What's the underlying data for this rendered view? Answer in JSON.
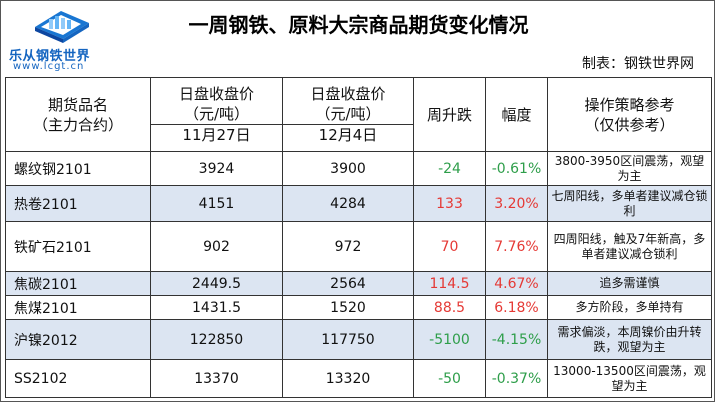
{
  "logo": {
    "name": "乐从钢铁世界",
    "url": "www.lcgt.cn"
  },
  "title": "一周钢铁、原料大宗商品期货变化情况",
  "maker": "制表：钢铁世界网",
  "headers": {
    "product_line1": "期货品名",
    "product_line2": "（主力合约）",
    "price1_line1": "日盘收盘价",
    "price1_line2": "（元/吨）",
    "price1_date": "11月27日",
    "price2_line1": "日盘收盘价",
    "price2_line2": "（元/吨）",
    "price2_date": "12月4日",
    "change": "周升跌",
    "range": "幅度",
    "strategy_line1": "操作策略参考",
    "strategy_line2": "（仅供参考）"
  },
  "rows": [
    {
      "name": "螺纹钢2101",
      "price1": "3924",
      "price2": "3900",
      "change": "-24",
      "range": "-0.61%",
      "trend": "down",
      "strategy": "3800-3950区间震荡，观望为主"
    },
    {
      "name": "热卷2101",
      "price1": "4151",
      "price2": "4284",
      "change": "133",
      "range": "3.20%",
      "trend": "up",
      "strategy": "七周阳线，多单者建议减仓锁利"
    },
    {
      "name": "铁矿石2101",
      "price1": "902",
      "price2": "972",
      "change": "70",
      "range": "7.76%",
      "trend": "up",
      "strategy": "四周阳线，触及7年新高，多单者建议减仓锁利"
    },
    {
      "name": "焦碳2101",
      "price1": "2449.5",
      "price2": "2564",
      "change": "114.5",
      "range": "4.67%",
      "trend": "up",
      "strategy": "追多需谨慎"
    },
    {
      "name": "焦煤2101",
      "price1": "1431.5",
      "price2": "1520",
      "change": "88.5",
      "range": "6.18%",
      "trend": "up",
      "strategy": "多方阶段，多单持有"
    },
    {
      "name": "沪镍2012",
      "price1": "122850",
      "price2": "117750",
      "change": "-5100",
      "range": "-4.15%",
      "trend": "down",
      "strategy": "需求偏淡，本周镍价由升转跌，观望为主"
    },
    {
      "name": "SS2102",
      "price1": "13370",
      "price2": "13320",
      "change": "-50",
      "range": "-0.37%",
      "trend": "down",
      "strategy": "13000-13500区间震荡，观望为主"
    }
  ],
  "colors": {
    "up": "#e53935",
    "down": "#2e9e4a",
    "row_alt": "#dce5f2",
    "brand": "#1565c0"
  }
}
